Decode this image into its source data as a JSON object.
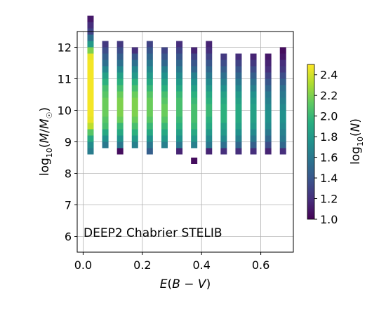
{
  "chart_data": {
    "type": "heatmap",
    "annotation": "DEEP2 Chabrier STELIB",
    "xlabel": "E(B − V)",
    "ylabel": "log10(M/M☉)",
    "xlim": [
      -0.02,
      0.71
    ],
    "ylim": [
      5.5,
      12.5
    ],
    "x_ticks": [
      "0.0",
      "0.2",
      "0.4",
      "0.6"
    ],
    "x_tick_values": [
      0.0,
      0.2,
      0.4,
      0.6
    ],
    "y_ticks": [
      "6",
      "7",
      "8",
      "9",
      "10",
      "11",
      "12"
    ],
    "y_tick_values": [
      6,
      7,
      8,
      9,
      10,
      11,
      12
    ],
    "grid": true,
    "colorbar": {
      "label": "log10(N)",
      "range": [
        1.0,
        2.5
      ],
      "ticks": [
        "1.0",
        "1.2",
        "1.4",
        "1.6",
        "1.8",
        "2.0",
        "2.2",
        "2.4"
      ],
      "tick_values": [
        1.0,
        1.2,
        1.4,
        1.6,
        1.8,
        2.0,
        2.2,
        2.4
      ],
      "colormap": "viridis"
    },
    "bin_width_x": 0.05,
    "bin_width_y": 0.2,
    "columns": [
      {
        "x": 0.025,
        "y_start": 8.7,
        "values": [
          1.62,
          1.72,
          1.9,
          2.1,
          2.35,
          2.45,
          2.47,
          2.48,
          2.48,
          2.48,
          2.48,
          2.48,
          2.48,
          2.48,
          2.48,
          2.45,
          2.2,
          1.8,
          1.55,
          1.3,
          1.2,
          1.1
        ]
      },
      {
        "x": 0.075,
        "y_start": 8.9,
        "values": [
          1.6,
          1.75,
          1.9,
          2.05,
          2.1,
          2.15,
          2.15,
          2.15,
          2.1,
          2.05,
          1.95,
          1.85,
          1.7,
          1.55,
          1.45,
          1.35,
          1.25
        ]
      },
      {
        "x": 0.125,
        "y_start": 8.7,
        "values": [
          1.05,
          1.6,
          1.75,
          1.9,
          2.0,
          2.15,
          2.2,
          2.2,
          2.2,
          2.15,
          2.05,
          1.95,
          1.85,
          1.7,
          1.55,
          1.45,
          1.35,
          1.25
        ]
      },
      {
        "x": 0.175,
        "y_start": 8.9,
        "values": [
          1.65,
          1.8,
          1.95,
          2.05,
          2.15,
          2.2,
          2.2,
          2.2,
          2.15,
          2.05,
          1.95,
          1.8,
          1.7,
          1.55,
          1.4,
          1.2
        ]
      },
      {
        "x": 0.225,
        "y_start": 8.7,
        "values": [
          1.45,
          1.6,
          1.75,
          1.9,
          2.0,
          2.1,
          2.15,
          2.15,
          2.15,
          2.1,
          2.0,
          1.9,
          1.8,
          1.7,
          1.6,
          1.5,
          1.4,
          1.3
        ]
      },
      {
        "x": 0.275,
        "y_start": 8.9,
        "values": [
          1.65,
          1.8,
          1.9,
          2.0,
          2.1,
          2.15,
          2.15,
          2.1,
          2.05,
          1.95,
          1.85,
          1.75,
          1.65,
          1.5,
          1.4,
          1.3
        ]
      },
      {
        "x": 0.325,
        "y_start": 8.7,
        "values": [
          1.15,
          1.6,
          1.75,
          1.85,
          1.95,
          2.0,
          2.05,
          2.05,
          2.05,
          2.0,
          1.9,
          1.8,
          1.7,
          1.6,
          1.5,
          1.4,
          1.3,
          1.2
        ]
      },
      {
        "x": 0.375,
        "y_start": 8.9,
        "values": [
          1.65,
          1.8,
          1.9,
          2.0,
          2.05,
          2.05,
          2.05,
          2.0,
          1.95,
          1.85,
          1.75,
          1.65,
          1.5,
          1.4,
          1.3,
          1.15
        ]
      },
      {
        "x": 0.425,
        "y_start": 8.7,
        "values": [
          1.15,
          1.6,
          1.7,
          1.8,
          1.9,
          1.95,
          2.0,
          2.0,
          1.95,
          1.9,
          1.8,
          1.7,
          1.6,
          1.5,
          1.4,
          1.3,
          1.2,
          1.15
        ]
      },
      {
        "x": 0.475,
        "y_start": 8.7,
        "values": [
          1.2,
          1.55,
          1.7,
          1.8,
          1.85,
          1.95,
          1.95,
          1.95,
          1.9,
          1.85,
          1.75,
          1.65,
          1.55,
          1.45,
          1.35,
          1.25
        ]
      },
      {
        "x": 0.525,
        "y_start": 8.7,
        "values": [
          1.2,
          1.5,
          1.65,
          1.75,
          1.85,
          1.9,
          1.9,
          1.9,
          1.85,
          1.8,
          1.7,
          1.6,
          1.5,
          1.4,
          1.3,
          1.2
        ]
      },
      {
        "x": 0.575,
        "y_start": 8.7,
        "values": [
          1.2,
          1.45,
          1.6,
          1.7,
          1.8,
          1.85,
          1.85,
          1.85,
          1.8,
          1.75,
          1.65,
          1.55,
          1.45,
          1.35,
          1.25,
          1.15
        ]
      },
      {
        "x": 0.625,
        "y_start": 8.7,
        "values": [
          1.15,
          1.35,
          1.5,
          1.6,
          1.7,
          1.75,
          1.75,
          1.7,
          1.65,
          1.6,
          1.5,
          1.4,
          1.3,
          1.2,
          1.15,
          1.1
        ]
      },
      {
        "x": 0.675,
        "y_start": 8.7,
        "values": [
          1.2,
          1.5,
          1.6,
          1.65,
          1.7,
          1.75,
          1.75,
          1.7,
          1.65,
          1.6,
          1.55,
          1.45,
          1.35,
          1.25,
          1.2,
          1.1,
          1.05
        ]
      }
    ],
    "extra_cells": [
      {
        "x": 0.375,
        "y": 8.4,
        "value": 1.05
      }
    ]
  }
}
